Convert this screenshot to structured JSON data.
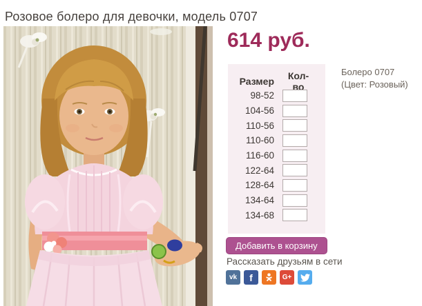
{
  "page": {
    "title": "Розовое болеро для девочки, модель 0707"
  },
  "product": {
    "price": "614 руб.",
    "name": "Болеро 0707",
    "color_note": "(Цвет: Розовый)"
  },
  "size_table": {
    "headers": [
      "Размер",
      "Кол-во"
    ],
    "rows": [
      {
        "size": "98-52",
        "qty": ""
      },
      {
        "size": "104-56",
        "qty": ""
      },
      {
        "size": "110-56",
        "qty": ""
      },
      {
        "size": "110-60",
        "qty": ""
      },
      {
        "size": "116-60",
        "qty": ""
      },
      {
        "size": "122-64",
        "qty": ""
      },
      {
        "size": "128-64",
        "qty": ""
      },
      {
        "size": "134-64",
        "qty": ""
      },
      {
        "size": "134-68",
        "qty": ""
      }
    ]
  },
  "actions": {
    "add_to_cart_label": "Добавить в корзину"
  },
  "share": {
    "label": "Рассказать друзьям в сети",
    "networks": [
      {
        "name": "vk",
        "color": "#507299"
      },
      {
        "name": "facebook",
        "color": "#3b5998"
      },
      {
        "name": "odnoklassniki",
        "color": "#ee7623"
      },
      {
        "name": "google-plus",
        "color": "#dd4b39"
      },
      {
        "name": "twitter",
        "color": "#55acee"
      }
    ]
  },
  "colors": {
    "price_text": "#9e2b5a",
    "button_bg": "#ad5190",
    "panel_bg": "#f7eef2",
    "title_text": "#46413d",
    "muted_text": "#6b635b"
  }
}
